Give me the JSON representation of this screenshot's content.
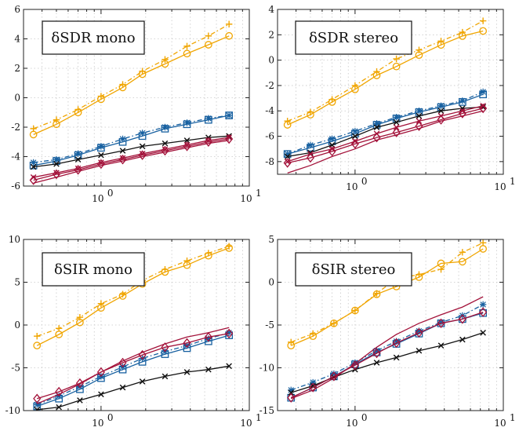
{
  "figure": {
    "series_styles": [
      {
        "key": "yellow",
        "color": "#f0a500",
        "markers": [
          "circle",
          "plus"
        ]
      },
      {
        "key": "blue",
        "color": "#1760a0",
        "markers": [
          "square",
          "asterisk"
        ]
      },
      {
        "key": "red",
        "color": "#a3123a",
        "markers": [
          "diamond",
          "x"
        ]
      },
      {
        "key": "black",
        "color": "#111111",
        "markers": [
          "x"
        ]
      }
    ]
  },
  "chart_data": [
    {
      "type": "line",
      "label": "δSDR mono",
      "xscale": "log",
      "xlim": [
        0.3,
        10
      ],
      "ylim": [
        -6,
        6
      ],
      "yticks": [
        -6,
        -4,
        -2,
        0,
        2,
        4,
        6
      ],
      "xtick_labels": [
        "10",
        "10"
      ],
      "xtick_exponents": [
        "0",
        "1"
      ],
      "x": [
        0.35,
        0.5,
        0.7,
        1.0,
        1.4,
        1.9,
        2.7,
        3.8,
        5.3,
        7.3
      ],
      "series": [
        {
          "color": "yellow",
          "marker": "plus",
          "dash": true,
          "values": [
            -2.1,
            -1.5,
            -0.8,
            0.1,
            0.9,
            1.8,
            2.6,
            3.5,
            4.2,
            5.0
          ]
        },
        {
          "color": "yellow",
          "marker": "circle",
          "dash": false,
          "values": [
            -2.5,
            -1.8,
            -1.0,
            -0.1,
            0.7,
            1.6,
            2.3,
            3.0,
            3.6,
            4.2
          ]
        },
        {
          "color": "blue",
          "marker": "asterisk",
          "dash": true,
          "values": [
            -4.4,
            -4.2,
            -3.8,
            -3.3,
            -2.8,
            -2.4,
            -2.0,
            -1.7,
            -1.4,
            -1.2
          ]
        },
        {
          "color": "blue",
          "marker": "square",
          "dash": false,
          "values": [
            -4.6,
            -4.3,
            -3.9,
            -3.4,
            -3.0,
            -2.6,
            -2.1,
            -1.8,
            -1.5,
            -1.2
          ]
        },
        {
          "color": "black",
          "marker": "x",
          "dash": false,
          "values": [
            -4.7,
            -4.5,
            -4.2,
            -3.9,
            -3.6,
            -3.3,
            -3.1,
            -2.9,
            -2.7,
            -2.6
          ]
        },
        {
          "color": "red",
          "marker": "x",
          "dash": false,
          "values": [
            -5.4,
            -5.1,
            -4.8,
            -4.4,
            -4.1,
            -3.8,
            -3.5,
            -3.2,
            -2.9,
            -2.7
          ]
        },
        {
          "color": "red",
          "marker": "diamond",
          "dash": false,
          "values": [
            -5.6,
            -5.2,
            -4.9,
            -4.5,
            -4.2,
            -3.9,
            -3.6,
            -3.3,
            -3.0,
            -2.8
          ]
        },
        {
          "color": "red",
          "marker": "none",
          "dash": false,
          "values": [
            -5.8,
            -5.4,
            -5.0,
            -4.6,
            -4.3,
            -4.0,
            -3.7,
            -3.4,
            -3.1,
            -2.9
          ]
        }
      ]
    },
    {
      "type": "line",
      "label": "δSDR stereo",
      "xscale": "log",
      "xlim": [
        0.3,
        10
      ],
      "ylim": [
        -9,
        4
      ],
      "yticks": [
        -8,
        -6,
        -4,
        -2,
        0,
        2,
        4
      ],
      "xtick_labels": [
        "10",
        "10"
      ],
      "xtick_exponents": [
        "0",
        "1"
      ],
      "x": [
        0.35,
        0.5,
        0.7,
        1.0,
        1.4,
        1.9,
        2.7,
        3.8,
        5.3,
        7.3
      ],
      "series": [
        {
          "color": "yellow",
          "marker": "plus",
          "dash": true,
          "values": [
            -4.8,
            -4.1,
            -3.1,
            -2.0,
            -0.9,
            0.1,
            0.8,
            1.5,
            2.2,
            3.1
          ]
        },
        {
          "color": "yellow",
          "marker": "circle",
          "dash": false,
          "values": [
            -5.1,
            -4.3,
            -3.3,
            -2.3,
            -1.2,
            -0.5,
            0.4,
            1.2,
            1.9,
            2.3
          ]
        },
        {
          "color": "blue",
          "marker": "asterisk",
          "dash": true,
          "values": [
            -7.4,
            -6.7,
            -6.2,
            -5.6,
            -5.0,
            -4.5,
            -4.0,
            -3.6,
            -3.2,
            -2.5
          ]
        },
        {
          "color": "blue",
          "marker": "square",
          "dash": false,
          "values": [
            -7.4,
            -6.9,
            -6.4,
            -5.8,
            -5.1,
            -4.6,
            -4.1,
            -3.7,
            -3.3,
            -2.7
          ]
        },
        {
          "color": "black",
          "marker": "x",
          "dash": false,
          "values": [
            -7.6,
            -7.3,
            -6.7,
            -6.0,
            -5.3,
            -4.9,
            -4.4,
            -4.0,
            -3.8,
            -3.7
          ]
        },
        {
          "color": "red",
          "marker": "x",
          "dash": false,
          "values": [
            -8.0,
            -7.4,
            -7.0,
            -6.4,
            -5.8,
            -5.3,
            -4.8,
            -4.4,
            -4.0,
            -3.6
          ]
        },
        {
          "color": "red",
          "marker": "diamond",
          "dash": false,
          "values": [
            -8.1,
            -7.7,
            -7.2,
            -6.6,
            -6.1,
            -5.7,
            -5.2,
            -4.7,
            -4.2,
            -3.8
          ]
        },
        {
          "color": "red",
          "marker": "none",
          "dash": false,
          "values": [
            -8.9,
            -8.3,
            -7.6,
            -7.0,
            -6.3,
            -5.9,
            -5.4,
            -4.8,
            -4.4,
            -4.0
          ]
        }
      ]
    },
    {
      "type": "line",
      "label": "δSIR mono",
      "xscale": "log",
      "xlim": [
        0.3,
        10
      ],
      "ylim": [
        -10,
        10
      ],
      "yticks": [
        -10,
        -5,
        0,
        5,
        10
      ],
      "xtick_labels": [
        "10",
        "10"
      ],
      "xtick_exponents": [
        "0",
        "1"
      ],
      "x": [
        0.37,
        0.52,
        0.72,
        1.0,
        1.4,
        1.9,
        2.7,
        3.8,
        5.3,
        7.3
      ],
      "series": [
        {
          "color": "yellow",
          "marker": "plus",
          "dash": true,
          "values": [
            -1.3,
            -0.4,
            0.9,
            2.5,
            3.6,
            5.2,
            6.5,
            7.5,
            8.4,
            9.2
          ]
        },
        {
          "color": "yellow",
          "marker": "circle",
          "dash": false,
          "values": [
            -2.4,
            -1.1,
            0.3,
            2.0,
            3.4,
            4.8,
            6.2,
            7.0,
            8.1,
            9.0
          ]
        },
        {
          "color": "blue",
          "marker": "asterisk",
          "dash": true,
          "values": [
            -9.3,
            -8.3,
            -7.2,
            -6.0,
            -4.9,
            -3.9,
            -3.1,
            -2.4,
            -1.6,
            -0.9
          ]
        },
        {
          "color": "blue",
          "marker": "square",
          "dash": false,
          "values": [
            -9.5,
            -8.6,
            -7.5,
            -6.2,
            -5.2,
            -4.3,
            -3.4,
            -2.7,
            -1.9,
            -1.2
          ]
        },
        {
          "color": "black",
          "marker": "x",
          "dash": false,
          "values": [
            -9.9,
            -9.6,
            -8.8,
            -8.1,
            -7.3,
            -6.6,
            -6.0,
            -5.5,
            -5.2,
            -4.8
          ]
        },
        {
          "color": "red",
          "marker": "diamond",
          "dash": false,
          "values": [
            -8.6,
            -7.8,
            -6.8,
            -5.5,
            -4.4,
            -3.5,
            -2.6,
            -2.1,
            -1.4,
            -1.0
          ]
        },
        {
          "color": "red",
          "marker": "none",
          "dash": false,
          "values": [
            -9.2,
            -8.1,
            -6.9,
            -5.5,
            -4.2,
            -3.2,
            -2.2,
            -1.4,
            -0.9,
            -0.3
          ]
        }
      ]
    },
    {
      "type": "line",
      "label": "δSIR stereo",
      "xscale": "log",
      "xlim": [
        0.3,
        10
      ],
      "ylim": [
        -15,
        5
      ],
      "yticks": [
        -15,
        -10,
        -5,
        0,
        5
      ],
      "xtick_labels": [
        "10",
        "10"
      ],
      "xtick_exponents": [
        "0",
        "1"
      ],
      "x": [
        0.37,
        0.52,
        0.72,
        1.0,
        1.4,
        1.9,
        2.7,
        3.8,
        5.3,
        7.3
      ],
      "series": [
        {
          "color": "yellow",
          "marker": "plus",
          "dash": true,
          "values": [
            -7.0,
            -6.0,
            -4.8,
            -3.3,
            -1.3,
            0.4,
            0.9,
            1.5,
            3.5,
            4.6
          ]
        },
        {
          "color": "yellow",
          "marker": "circle",
          "dash": false,
          "values": [
            -7.4,
            -6.3,
            -4.8,
            -3.3,
            -1.4,
            -0.5,
            0.6,
            2.2,
            2.4,
            3.9
          ]
        },
        {
          "color": "blue",
          "marker": "asterisk",
          "dash": true,
          "values": [
            -12.6,
            -11.7,
            -10.7,
            -9.4,
            -8.0,
            -6.9,
            -5.7,
            -4.7,
            -3.9,
            -2.6
          ]
        },
        {
          "color": "blue",
          "marker": "square",
          "dash": false,
          "values": [
            -13.5,
            -12.3,
            -11.0,
            -9.6,
            -8.2,
            -7.2,
            -6.0,
            -4.8,
            -4.3,
            -3.6
          ]
        },
        {
          "color": "black",
          "marker": "x",
          "dash": false,
          "values": [
            -12.9,
            -12.1,
            -11.1,
            -10.2,
            -9.4,
            -8.8,
            -8.0,
            -7.4,
            -6.7,
            -5.9
          ]
        },
        {
          "color": "red",
          "marker": "diamond",
          "dash": false,
          "values": [
            -13.5,
            -12.3,
            -11.0,
            -9.7,
            -8.3,
            -7.1,
            -5.9,
            -4.8,
            -4.3,
            -3.5
          ]
        },
        {
          "color": "red",
          "marker": "none",
          "dash": false,
          "values": [
            -13.6,
            -12.6,
            -11.2,
            -9.5,
            -7.6,
            -6.1,
            -4.8,
            -3.8,
            -2.9,
            -1.7
          ]
        }
      ]
    }
  ]
}
